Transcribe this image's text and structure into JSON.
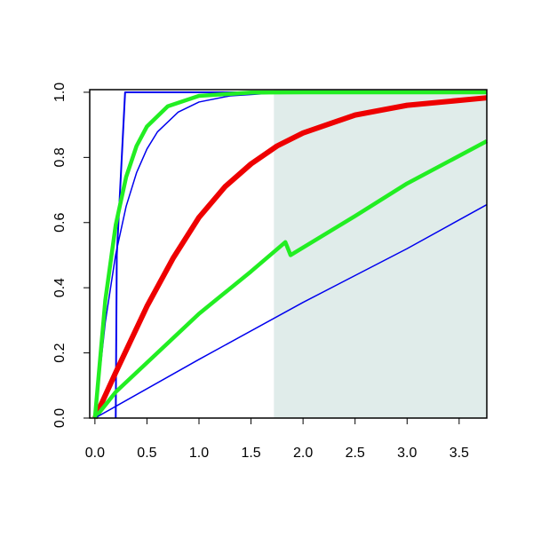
{
  "chart_data": {
    "type": "line",
    "xlim": [
      -0.05,
      3.766
    ],
    "ylim": [
      0,
      1.008
    ],
    "xticks": [
      {
        "value": 0,
        "label": "0.0"
      },
      0.5,
      {
        "value": 1,
        "label": "1.0"
      },
      1.5,
      {
        "value": 2,
        "label": "2.0"
      },
      2.5,
      {
        "value": 3,
        "label": "3.0"
      },
      3.5
    ],
    "yticks": [
      {
        "value": 0,
        "label": "0.0"
      },
      0.2,
      0.4,
      0.6,
      0.8,
      {
        "value": 1,
        "label": "1.0"
      }
    ],
    "shaded_region": {
      "xmin": 1.72,
      "xmax": 3.766,
      "color": "#e0ecea"
    },
    "series": [
      {
        "color": "#0000ee",
        "width": 2,
        "x": [
          0.2,
          0.21,
          0.29,
          3.766
        ],
        "values": [
          0,
          0.5,
          1,
          1
        ]
      },
      {
        "color": "#0000ee",
        "width": 1.5,
        "x": [
          0,
          0.1,
          0.2,
          0.3,
          0.4,
          0.5,
          0.6,
          0.8,
          1.0,
          1.3,
          1.7,
          2.5,
          3.766
        ],
        "values": [
          0,
          0.295,
          0.503,
          0.65,
          0.753,
          0.826,
          0.878,
          0.939,
          0.97,
          0.989,
          0.997,
          1,
          1
        ]
      },
      {
        "color": "#ee0000",
        "width": 6,
        "x": [
          0,
          0.2,
          0.5,
          0.75,
          1.0,
          1.25,
          1.5,
          1.75,
          2.0,
          2.5,
          3.0,
          3.766
        ],
        "values": [
          0,
          0.14,
          0.343,
          0.49,
          0.616,
          0.71,
          0.78,
          0.835,
          0.875,
          0.93,
          0.96,
          0.983
        ]
      },
      {
        "color": "#22ee22",
        "width": 4.5,
        "x": [
          0,
          0.2,
          0.5,
          1.0,
          1.5,
          1.83,
          1.88,
          2.5,
          3.0,
          3.766
        ],
        "values": [
          0,
          0.08,
          0.17,
          0.32,
          0.45,
          0.54,
          0.5,
          0.62,
          0.72,
          0.85
        ]
      },
      {
        "color": "#0000ee",
        "width": 1.5,
        "x": [
          0,
          1,
          2,
          3,
          3.766
        ],
        "values": [
          0,
          0.18,
          0.355,
          0.52,
          0.655
        ]
      },
      {
        "color": "#22ee22",
        "width": 4.5,
        "x": [
          0,
          0.1,
          0.2,
          0.3,
          0.4,
          0.5,
          0.7,
          1.0,
          1.5,
          2.0,
          3.766
        ],
        "values": [
          0,
          0.362,
          0.593,
          0.74,
          0.835,
          0.895,
          0.957,
          0.989,
          0.999,
          1,
          1
        ]
      }
    ]
  }
}
